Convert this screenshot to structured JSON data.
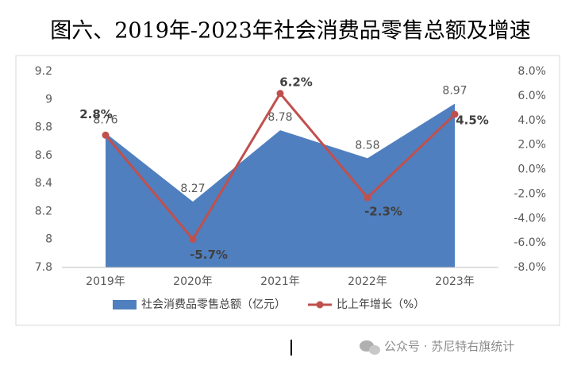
{
  "chart_data": {
    "type": "area-line",
    "title": "图六、2019年-2023年社会消费品零售总额及增速",
    "categories": [
      "2019年",
      "2020年",
      "2021年",
      "2022年",
      "2023年"
    ],
    "series": [
      {
        "name": "社会消费品零售总额（亿元）",
        "type": "area",
        "color": "#4f7fbf",
        "values": [
          8.76,
          8.27,
          8.78,
          8.58,
          8.97
        ]
      },
      {
        "name": "比上年增长（%）",
        "type": "line",
        "axis": "y2",
        "color": "#c0504d",
        "values": [
          2.8,
          -5.7,
          6.2,
          -2.3,
          4.5
        ],
        "value_labels": [
          "2.8%",
          "-5.7%",
          "6.2%",
          "-2.3%",
          "4.5%"
        ]
      }
    ],
    "ylim": [
      7.8,
      9.2
    ],
    "yticks": [
      7.8,
      8,
      8.2,
      8.4,
      8.6,
      8.8,
      9,
      9.2
    ],
    "y2lim": [
      -8,
      8
    ],
    "y2ticks": [
      {
        "value": -8,
        "label": "-8.0%"
      },
      {
        "value": -6,
        "label": "-6.0%"
      },
      {
        "value": -4,
        "label": "-4.0%"
      },
      {
        "value": -2,
        "label": "-2.0%"
      },
      {
        "value": 0,
        "label": "0.0%"
      },
      {
        "value": 2,
        "label": "2.0%"
      },
      {
        "value": 4,
        "label": "4.0%"
      },
      {
        "value": 6,
        "label": "6.0%"
      },
      {
        "value": 8,
        "label": "8.0%"
      }
    ],
    "grid": false,
    "legend": "bottom",
    "watermark": "公众号 · 苏尼特右旗统计"
  }
}
